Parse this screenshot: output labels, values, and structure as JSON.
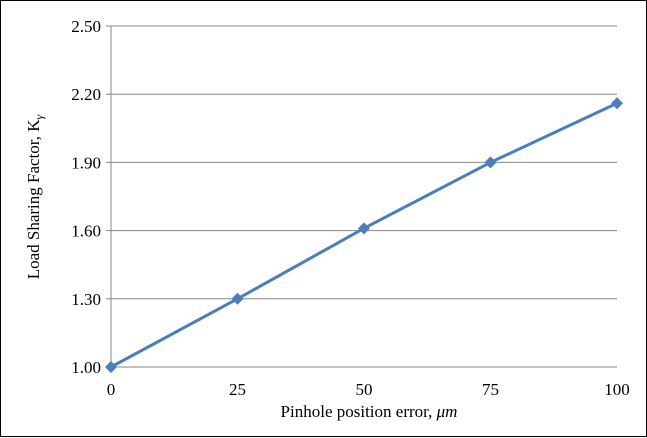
{
  "chart_data": {
    "type": "line",
    "title": "",
    "xlabel": "Pinhole position error, ",
    "xlabel_italic": "μm",
    "ylabel": "Load Sharing Factor, K",
    "ylabel_subscript": "γ",
    "x": [
      0,
      25,
      50,
      75,
      100
    ],
    "series": [
      {
        "values": [
          1.0,
          1.3,
          1.61,
          1.9,
          2.16
        ],
        "color": "#4a7ebb",
        "marker": "diamond"
      }
    ],
    "xlim": [
      0,
      100
    ],
    "ylim": [
      1.0,
      2.5
    ],
    "x_ticks": [
      "0",
      "25",
      "50",
      "75",
      "100"
    ],
    "y_ticks": [
      "1.00",
      "1.30",
      "1.60",
      "1.90",
      "2.20",
      "2.50"
    ],
    "grid": "horizontal",
    "legend": "none"
  }
}
